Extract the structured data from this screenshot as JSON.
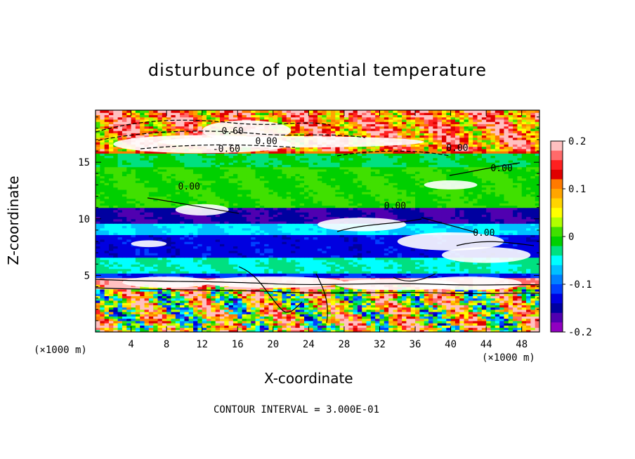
{
  "chart_data": {
    "type": "heatmap",
    "title": "disturbunce of potential temperature",
    "xlabel": "X-coordinate",
    "ylabel": "Z-coordinate",
    "x_unit": "(×1000 m)",
    "z_unit": "(×1000 m)",
    "xlim": [
      0,
      50
    ],
    "ylim": [
      0,
      19.6
    ],
    "x_ticks": [
      4,
      8,
      12,
      16,
      20,
      24,
      28,
      32,
      36,
      40,
      44,
      48
    ],
    "y_ticks": [
      5,
      10,
      15
    ],
    "colorbar": {
      "range": [
        -0.2,
        0.2
      ],
      "tick_labels": [
        "0.2",
        "0.1",
        "0",
        "-0.1",
        "-0.2"
      ],
      "colors": [
        "#ffc0c0",
        "#ff6a6a",
        "#ff2020",
        "#e00000",
        "#ff7a00",
        "#ffa500",
        "#ffd400",
        "#ffff00",
        "#b0ff00",
        "#40e000",
        "#00d000",
        "#00e080",
        "#00ffff",
        "#00c0ff",
        "#0080ff",
        "#0040ff",
        "#0000e0",
        "#0000a0",
        "#5000b0",
        "#9000c0"
      ]
    },
    "contour_interval": "CONTOUR INTERVAL = 3.000E-01",
    "contour_labels": [
      "0.60",
      "-0.60",
      "0.00",
      "0.00",
      "0.00",
      "0.00",
      "0.00",
      "0.00"
    ]
  }
}
